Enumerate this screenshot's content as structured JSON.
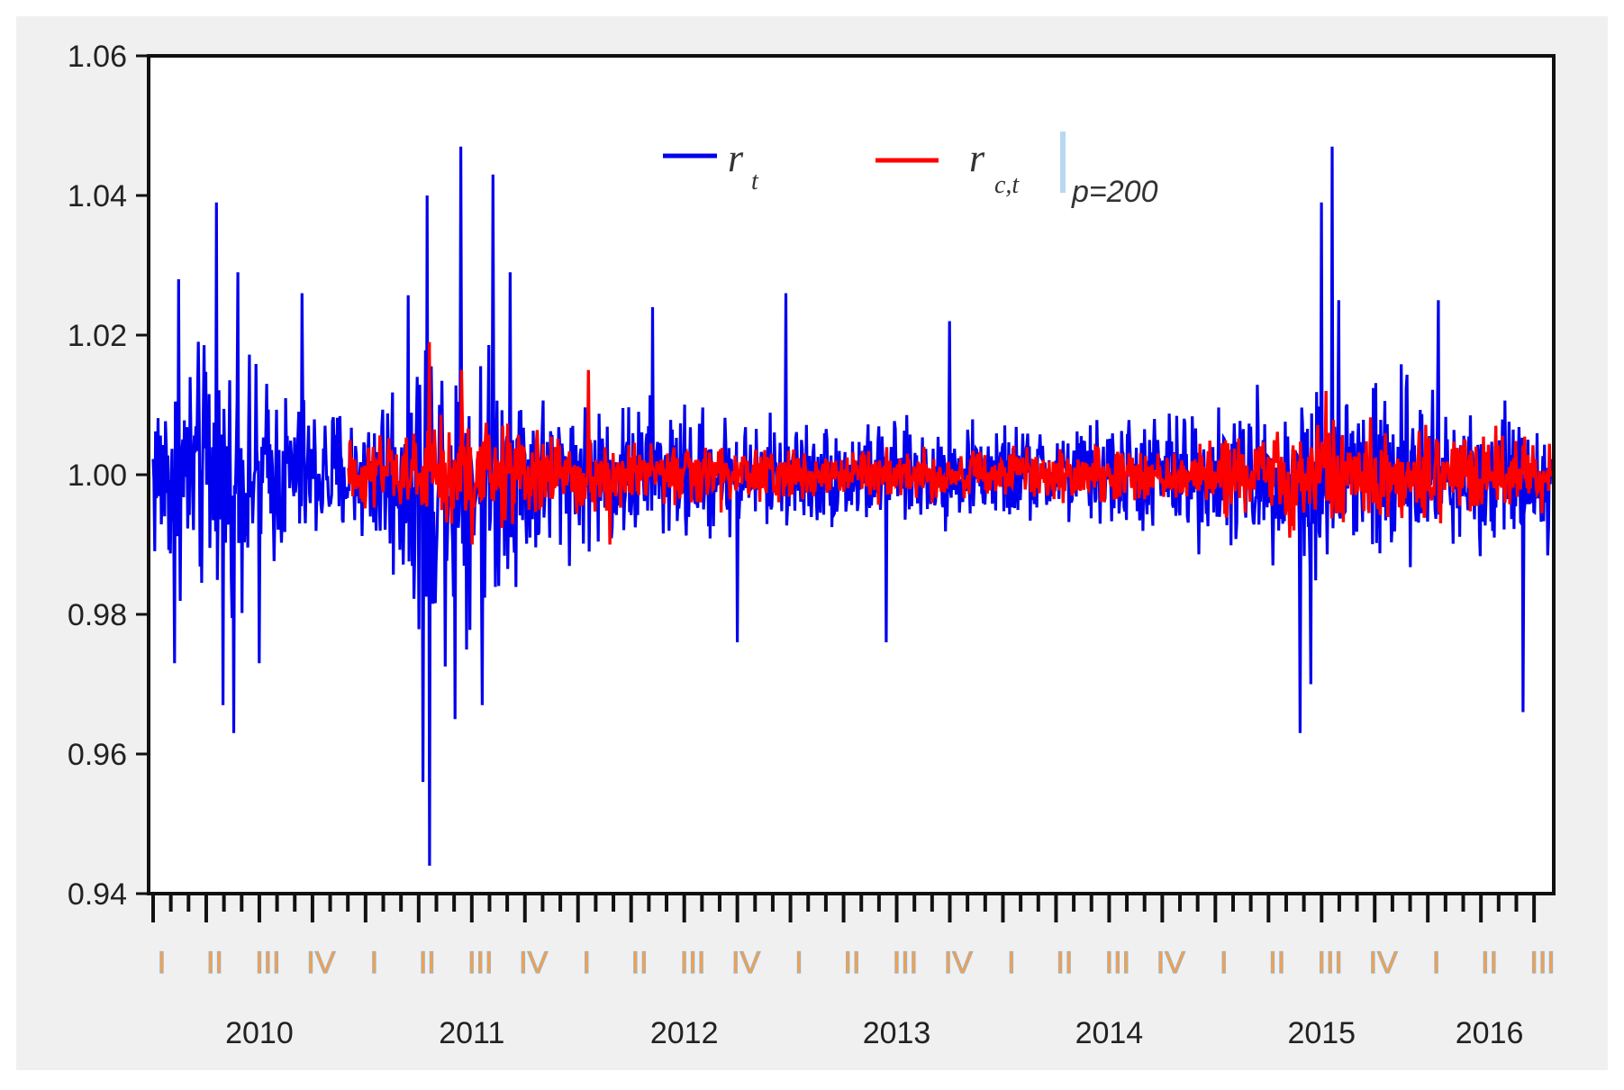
{
  "chart_data": {
    "type": "line",
    "title": "",
    "xlabel": "",
    "ylabel": "",
    "ylim": [
      0.94,
      1.06
    ],
    "y_ticks": [
      "0.94",
      "0.96",
      "0.98",
      "1.00",
      "1.02",
      "1.04",
      "1.06"
    ],
    "y_tick_values": [
      0.94,
      0.96,
      0.98,
      1.0,
      1.02,
      1.04,
      1.06
    ],
    "xlim": [
      2010.0,
      2016.58
    ],
    "year_labels": [
      {
        "label": "2010",
        "x": 2010.5
      },
      {
        "label": "2011",
        "x": 2011.5
      },
      {
        "label": "2012",
        "x": 2012.5
      },
      {
        "label": "2013",
        "x": 2013.5
      },
      {
        "label": "2014",
        "x": 2014.5
      },
      {
        "label": "2015",
        "x": 2015.5
      },
      {
        "label": "2016",
        "x": 2016.29
      }
    ],
    "quarter_labels": [
      "I",
      "II",
      "III",
      "IV"
    ],
    "grid": false,
    "legend_placement": "top-center",
    "legend": {
      "series1_symbol": "r",
      "series1_sub": "t",
      "series2_symbol": "r",
      "series2_sub": "c,t",
      "condition": "p=200"
    },
    "series": [
      {
        "key": "r_t",
        "color": "#0000ee",
        "start": 2010.0,
        "end": 2016.58,
        "points": 1700,
        "mean": 1.0,
        "envelope": [
          {
            "x": 2010.0,
            "amp": 0.012
          },
          {
            "x": 2010.25,
            "amp": 0.016
          },
          {
            "x": 2010.5,
            "amp": 0.012
          },
          {
            "x": 2010.75,
            "amp": 0.009
          },
          {
            "x": 2011.0,
            "amp": 0.008
          },
          {
            "x": 2011.3,
            "amp": 0.02
          },
          {
            "x": 2011.6,
            "amp": 0.015
          },
          {
            "x": 2011.9,
            "amp": 0.009
          },
          {
            "x": 2012.3,
            "amp": 0.009
          },
          {
            "x": 2012.8,
            "amp": 0.007
          },
          {
            "x": 2013.5,
            "amp": 0.006
          },
          {
            "x": 2014.3,
            "amp": 0.006
          },
          {
            "x": 2014.8,
            "amp": 0.008
          },
          {
            "x": 2015.3,
            "amp": 0.009
          },
          {
            "x": 2015.6,
            "amp": 0.014
          },
          {
            "x": 2016.0,
            "amp": 0.01
          },
          {
            "x": 2016.58,
            "amp": 0.008
          }
        ],
        "spikes": [
          {
            "x": 2010.3,
            "y": 1.039
          },
          {
            "x": 2010.38,
            "y": 0.963
          },
          {
            "x": 2010.4,
            "y": 1.029
          },
          {
            "x": 2010.33,
            "y": 0.967
          },
          {
            "x": 2010.1,
            "y": 0.973
          },
          {
            "x": 2010.12,
            "y": 1.028
          },
          {
            "x": 2010.5,
            "y": 0.973
          },
          {
            "x": 2010.7,
            "y": 1.026
          },
          {
            "x": 2011.3,
            "y": 0.944
          },
          {
            "x": 2011.29,
            "y": 1.04
          },
          {
            "x": 2011.27,
            "y": 0.956
          },
          {
            "x": 2011.45,
            "y": 1.047
          },
          {
            "x": 2011.6,
            "y": 1.043
          },
          {
            "x": 2011.55,
            "y": 0.967
          },
          {
            "x": 2011.42,
            "y": 0.965
          },
          {
            "x": 2011.68,
            "y": 1.029
          },
          {
            "x": 2012.35,
            "y": 1.024
          },
          {
            "x": 2012.75,
            "y": 0.976
          },
          {
            "x": 2012.98,
            "y": 1.026
          },
          {
            "x": 2013.45,
            "y": 0.976
          },
          {
            "x": 2013.75,
            "y": 1.022
          },
          {
            "x": 2015.4,
            "y": 0.963
          },
          {
            "x": 2015.55,
            "y": 1.047
          },
          {
            "x": 2015.5,
            "y": 1.039
          },
          {
            "x": 2015.45,
            "y": 0.97
          },
          {
            "x": 2015.58,
            "y": 1.025
          },
          {
            "x": 2016.05,
            "y": 1.025
          },
          {
            "x": 2016.45,
            "y": 0.966
          }
        ]
      },
      {
        "key": "r_ct",
        "color": "#ff0000",
        "start": 2010.92,
        "end": 2016.58,
        "points": 1460,
        "mean": 1.0,
        "envelope": [
          {
            "x": 2010.92,
            "amp": 0.004
          },
          {
            "x": 2011.2,
            "amp": 0.005
          },
          {
            "x": 2011.45,
            "amp": 0.008
          },
          {
            "x": 2011.7,
            "amp": 0.006
          },
          {
            "x": 2012.0,
            "amp": 0.005
          },
          {
            "x": 2012.5,
            "amp": 0.004
          },
          {
            "x": 2013.2,
            "amp": 0.003
          },
          {
            "x": 2014.0,
            "amp": 0.003
          },
          {
            "x": 2014.8,
            "amp": 0.004
          },
          {
            "x": 2015.5,
            "amp": 0.006
          },
          {
            "x": 2016.1,
            "amp": 0.005
          },
          {
            "x": 2016.58,
            "amp": 0.004
          }
        ],
        "spikes": [
          {
            "x": 2011.3,
            "y": 1.019
          },
          {
            "x": 2011.45,
            "y": 1.015
          },
          {
            "x": 2011.5,
            "y": 0.99
          },
          {
            "x": 2012.05,
            "y": 1.015
          },
          {
            "x": 2012.15,
            "y": 0.99
          },
          {
            "x": 2015.52,
            "y": 1.012
          },
          {
            "x": 2015.35,
            "y": 0.991
          }
        ]
      }
    ]
  }
}
